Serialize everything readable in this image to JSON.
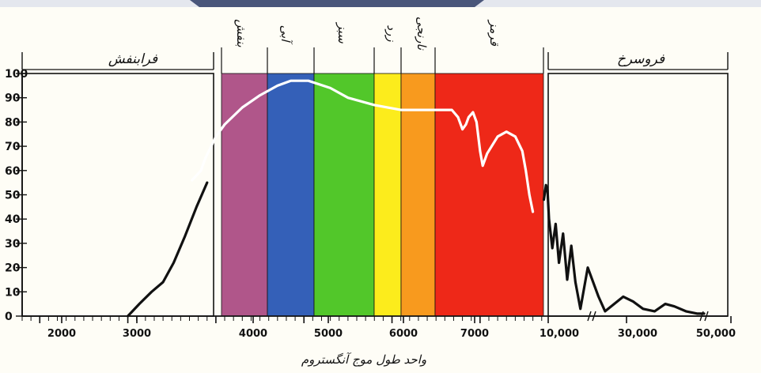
{
  "chart_data": {
    "type": "line",
    "title": "",
    "xlabel": "واحد طول موج آنگستروم",
    "ylabel": "",
    "ylim": [
      0,
      100
    ],
    "yticks": [
      0,
      10,
      20,
      30,
      40,
      50,
      60,
      70,
      80,
      90,
      100
    ],
    "grid": false,
    "x_ticks": [
      "2000",
      "3000",
      "4000",
      "5000",
      "6000",
      "7000",
      "10,000",
      "30,000",
      "50,000"
    ],
    "regions": [
      {
        "name": "فرابنفش",
        "from": 1800,
        "to": 3700
      },
      {
        "name": "فروسرخ",
        "from": 7850,
        "to": 50000
      }
    ],
    "bands": [
      {
        "name": "بنفش",
        "from": 3730,
        "to": 4220,
        "color": "#b0568a"
      },
      {
        "name": "آبی",
        "from": 4220,
        "to": 4800,
        "color": "#3460b8"
      },
      {
        "name": "سبز",
        "from": 4800,
        "to": 5580,
        "color": "#52c72a"
      },
      {
        "name": "زرد",
        "from": 5580,
        "to": 5920,
        "color": "#fcec1c"
      },
      {
        "name": "نارنجی",
        "from": 5920,
        "to": 6350,
        "color": "#f89a1e"
      },
      {
        "name": "قرمز",
        "from": 6350,
        "to": 7720,
        "color": "#ee2818"
      }
    ],
    "series": [
      {
        "segment": "ultraviolet",
        "color": "#111111",
        "points": [
          [
            3000,
            0
          ],
          [
            3130,
            5
          ],
          [
            3270,
            10
          ],
          [
            3400,
            14
          ],
          [
            3520,
            22
          ],
          [
            3650,
            33
          ],
          [
            3780,
            45
          ],
          [
            3900,
            55
          ]
        ]
      },
      {
        "segment": "visible",
        "color": "#ffffff",
        "points": [
          [
            3730,
            56
          ],
          [
            3830,
            60
          ],
          [
            3880,
            65
          ],
          [
            4000,
            74
          ],
          [
            4100,
            79
          ],
          [
            4300,
            86
          ],
          [
            4500,
            91
          ],
          [
            4700,
            95
          ],
          [
            4850,
            97
          ],
          [
            5050,
            97
          ],
          [
            5300,
            94
          ],
          [
            5500,
            90
          ],
          [
            5800,
            87
          ],
          [
            6100,
            85
          ],
          [
            6500,
            85
          ],
          [
            6680,
            85
          ],
          [
            6750,
            82
          ],
          [
            6800,
            77
          ],
          [
            6840,
            79
          ],
          [
            6870,
            82
          ],
          [
            6920,
            84
          ],
          [
            6960,
            80
          ],
          [
            7000,
            68
          ],
          [
            7030,
            62
          ],
          [
            7080,
            67
          ],
          [
            7200,
            74
          ],
          [
            7300,
            76
          ],
          [
            7400,
            74
          ],
          [
            7480,
            68
          ],
          [
            7520,
            60
          ],
          [
            7560,
            50
          ],
          [
            7600,
            43
          ]
        ]
      },
      {
        "segment": "infrared",
        "color": "#111111",
        "points": [
          [
            7730,
            48
          ],
          [
            7790,
            54
          ],
          [
            7830,
            52
          ],
          [
            7860,
            40
          ],
          [
            7900,
            28
          ],
          [
            7940,
            38
          ],
          [
            7980,
            22
          ],
          [
            8030,
            34
          ],
          [
            8080,
            15
          ],
          [
            8130,
            29
          ],
          [
            8180,
            14
          ],
          [
            8240,
            3
          ],
          [
            8330,
            20
          ],
          [
            8460,
            8
          ],
          [
            8540,
            2
          ],
          [
            8650,
            5
          ],
          [
            8760,
            8
          ],
          [
            8880,
            6
          ],
          [
            9000,
            3
          ],
          [
            9140,
            2
          ],
          [
            9270,
            5
          ],
          [
            9380,
            4
          ],
          [
            9520,
            2
          ],
          [
            9660,
            1
          ],
          [
            9740,
            1
          ]
        ]
      }
    ]
  }
}
